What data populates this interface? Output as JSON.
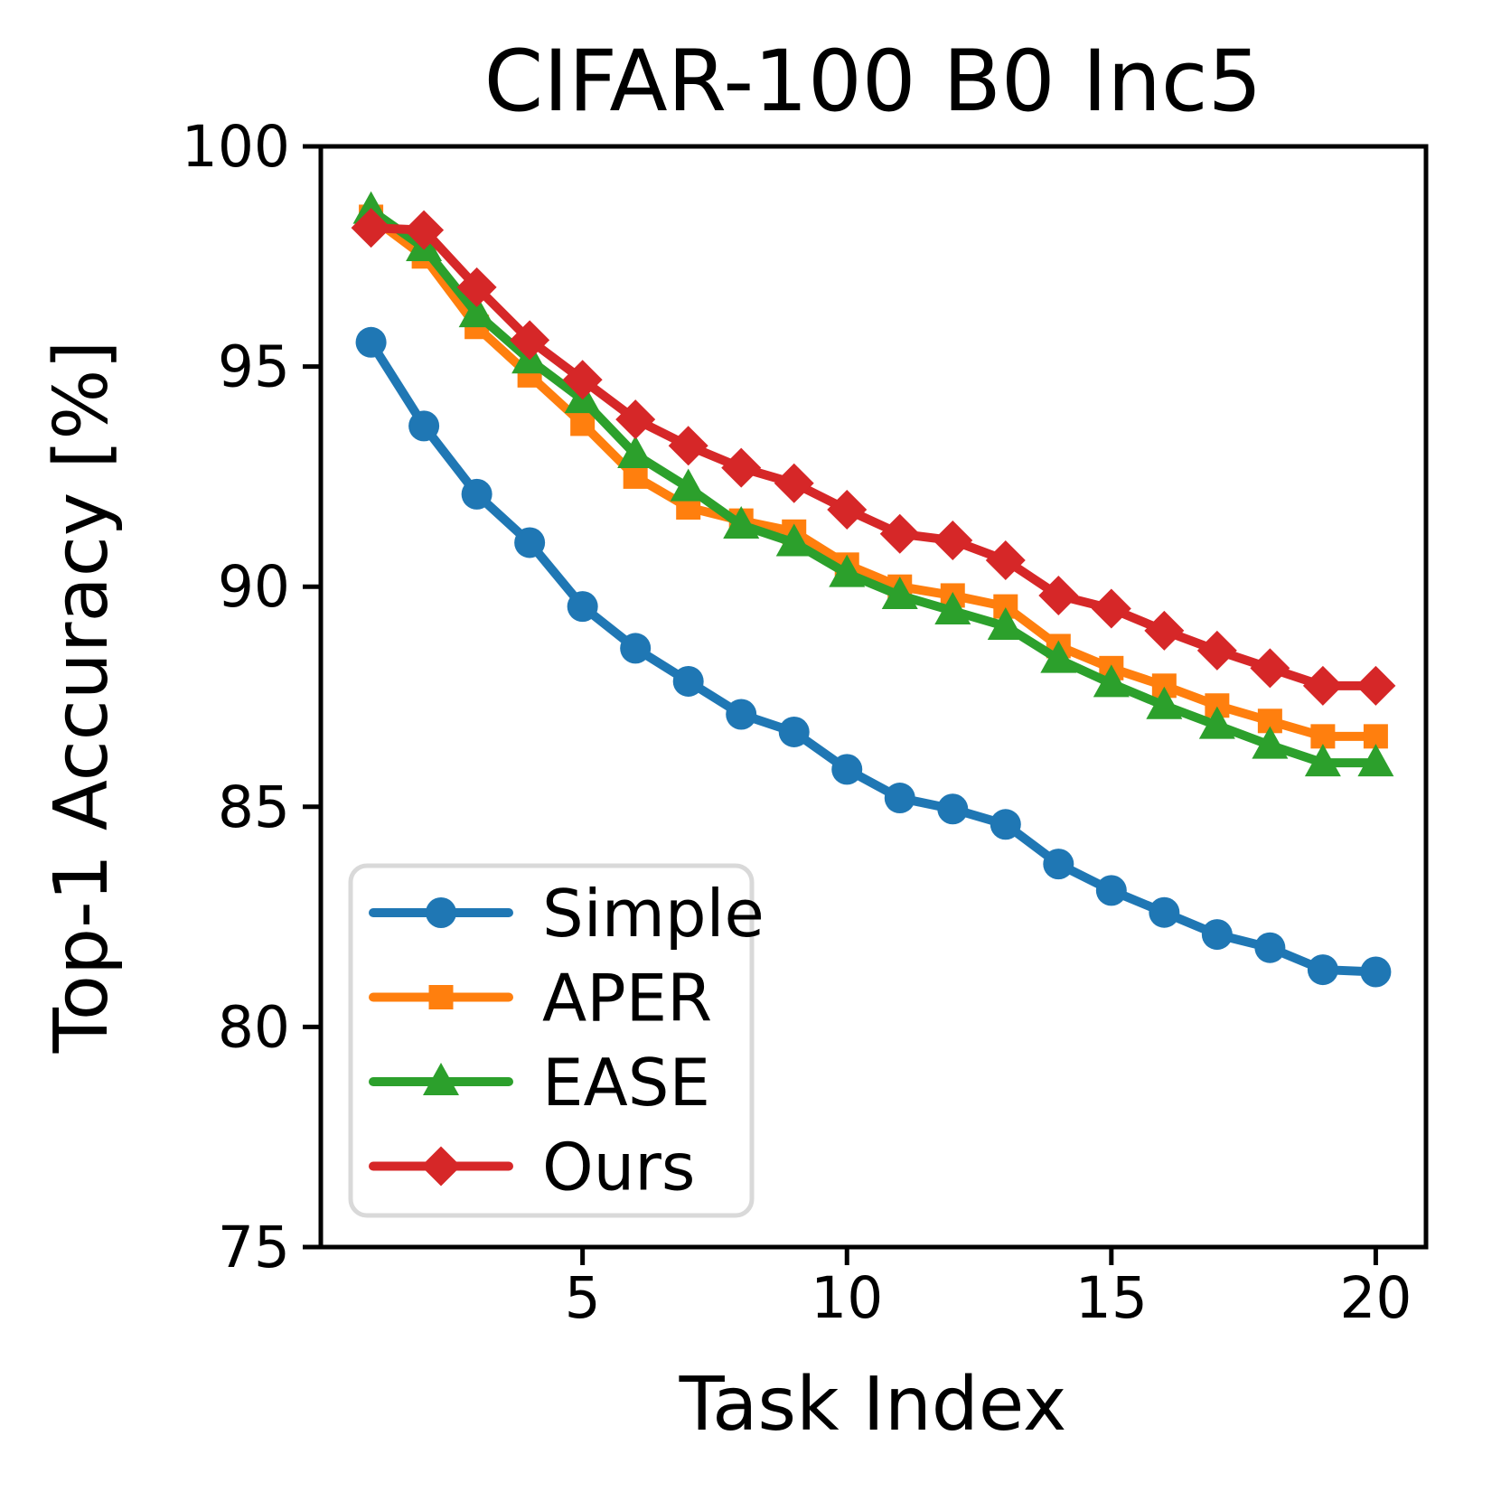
{
  "figure": {
    "background": "#ffffff",
    "text_color": "#000000",
    "spine_color": "#000000"
  },
  "chart_data": {
    "type": "line",
    "title": "CIFAR-100 B0 Inc5",
    "xlabel": "Task Index",
    "ylabel": "Top-1 Accuracy [%]",
    "x": [
      1,
      2,
      3,
      4,
      5,
      6,
      7,
      8,
      9,
      10,
      11,
      12,
      13,
      14,
      15,
      16,
      17,
      18,
      19,
      20
    ],
    "xlim": [
      0.05,
      20.95
    ],
    "ylim": [
      75,
      100
    ],
    "x_ticks": [
      5,
      10,
      15,
      20
    ],
    "y_ticks": [
      75,
      80,
      85,
      90,
      95,
      100
    ],
    "grid": false,
    "legend_position": "lower left",
    "series": [
      {
        "name": "Simple",
        "color": "#1f77b4",
        "marker": "circle",
        "values": [
          95.55,
          93.65,
          92.1,
          91.0,
          89.55,
          88.6,
          87.85,
          87.1,
          86.7,
          85.85,
          85.2,
          84.95,
          84.6,
          83.7,
          83.1,
          82.6,
          82.1,
          81.8,
          81.3,
          81.25
        ]
      },
      {
        "name": "APER",
        "color": "#ff7f0e",
        "marker": "square",
        "values": [
          98.4,
          97.5,
          95.9,
          94.8,
          93.7,
          92.5,
          91.8,
          91.5,
          91.25,
          90.5,
          90.0,
          89.8,
          89.55,
          88.65,
          88.15,
          87.75,
          87.3,
          86.95,
          86.6,
          86.6
        ]
      },
      {
        "name": "EASE",
        "color": "#2ca02c",
        "marker": "triangle",
        "values": [
          98.55,
          97.7,
          96.2,
          95.15,
          94.25,
          93.0,
          92.25,
          91.4,
          91.0,
          90.3,
          89.8,
          89.45,
          89.1,
          88.35,
          87.8,
          87.3,
          86.85,
          86.4,
          86.0,
          86.0
        ]
      },
      {
        "name": "Ours",
        "color": "#d62728",
        "marker": "diamond",
        "values": [
          98.15,
          98.1,
          96.8,
          95.6,
          94.7,
          93.8,
          93.2,
          92.7,
          92.35,
          91.75,
          91.2,
          91.05,
          90.6,
          89.8,
          89.5,
          89.0,
          88.55,
          88.15,
          87.75,
          87.75
        ]
      }
    ]
  }
}
